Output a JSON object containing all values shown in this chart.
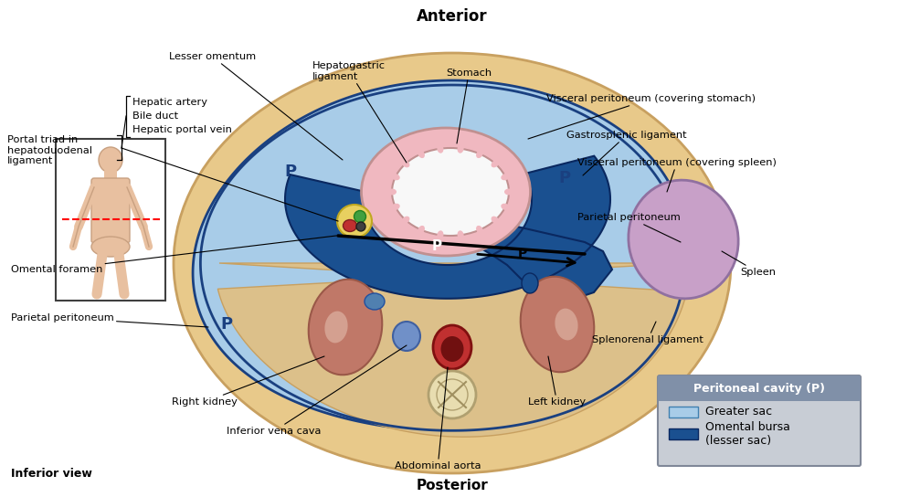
{
  "bg_color": "#ffffff",
  "outer_fill": "#e8c98a",
  "outer_edge": "#c8a060",
  "greater_sac_color": "#a8cce8",
  "omental_bursa_color": "#1a5090",
  "stomach_fill": "#f0b8c0",
  "stomach_lumen": "#ffffff",
  "stomach_edge": "#c09090",
  "spleen_fill": "#c8a0c8",
  "spleen_edge": "#9070a0",
  "kidney_fill": "#c07868",
  "kidney_edge": "#9a5848",
  "aorta_fill": "#c03030",
  "aorta_edge": "#801010",
  "ivc_fill": "#7090c8",
  "ivc_edge": "#4060a0",
  "vertebra_fill": "#e8ddb0",
  "vertebra_edge": "#b0a070",
  "retroperitoneal_fill": "#d4b87c",
  "inner_tan_fill": "#dcc08a",
  "parietal_edge": "#1a4080",
  "legend_header_bg": "#8090a8",
  "legend_body_bg": "#c8cdd5",
  "legend_border": "#808898",
  "legend_greater_sac": "#a8cce8",
  "legend_omental_bursa": "#1a5090",
  "labels": {
    "anterior": "Anterior",
    "posterior": "Posterior",
    "inferior_view": "Inferior view",
    "lesser_omentum": "Lesser omentum",
    "portal_triad": "Portal triad in\nhepatoduodenal\nligament",
    "hepatic_artery": "Hepatic artery",
    "bile_duct": "Bile duct",
    "hepatic_portal_vein": "Hepatic portal vein",
    "hepatogastric": "Hepatogastric\nligament",
    "stomach": "Stomach",
    "visceral_stomach": "Visceral peritoneum (covering stomach)",
    "gastrosplenic": "Gastrosplenic ligament",
    "visceral_spleen": "Visceral peritoneum (covering spleen)",
    "parietal_peritoneum": "Parietal peritoneum",
    "spleen": "Spleen",
    "splenorenal": "Splenorenal ligament",
    "omental_foramen": "Omental foramen",
    "parietal_left": "Parietal peritoneum",
    "right_kidney": "Right kidney",
    "ivc": "Inferior vena cava",
    "left_kidney": "Left kidney",
    "abdominal_aorta": "Abdominal aorta",
    "peritoneal_title": "Peritoneal cavity (P)",
    "greater_sac_label": "Greater sac",
    "omental_bursa_label": "Omental bursa\n(lesser sac)"
  }
}
